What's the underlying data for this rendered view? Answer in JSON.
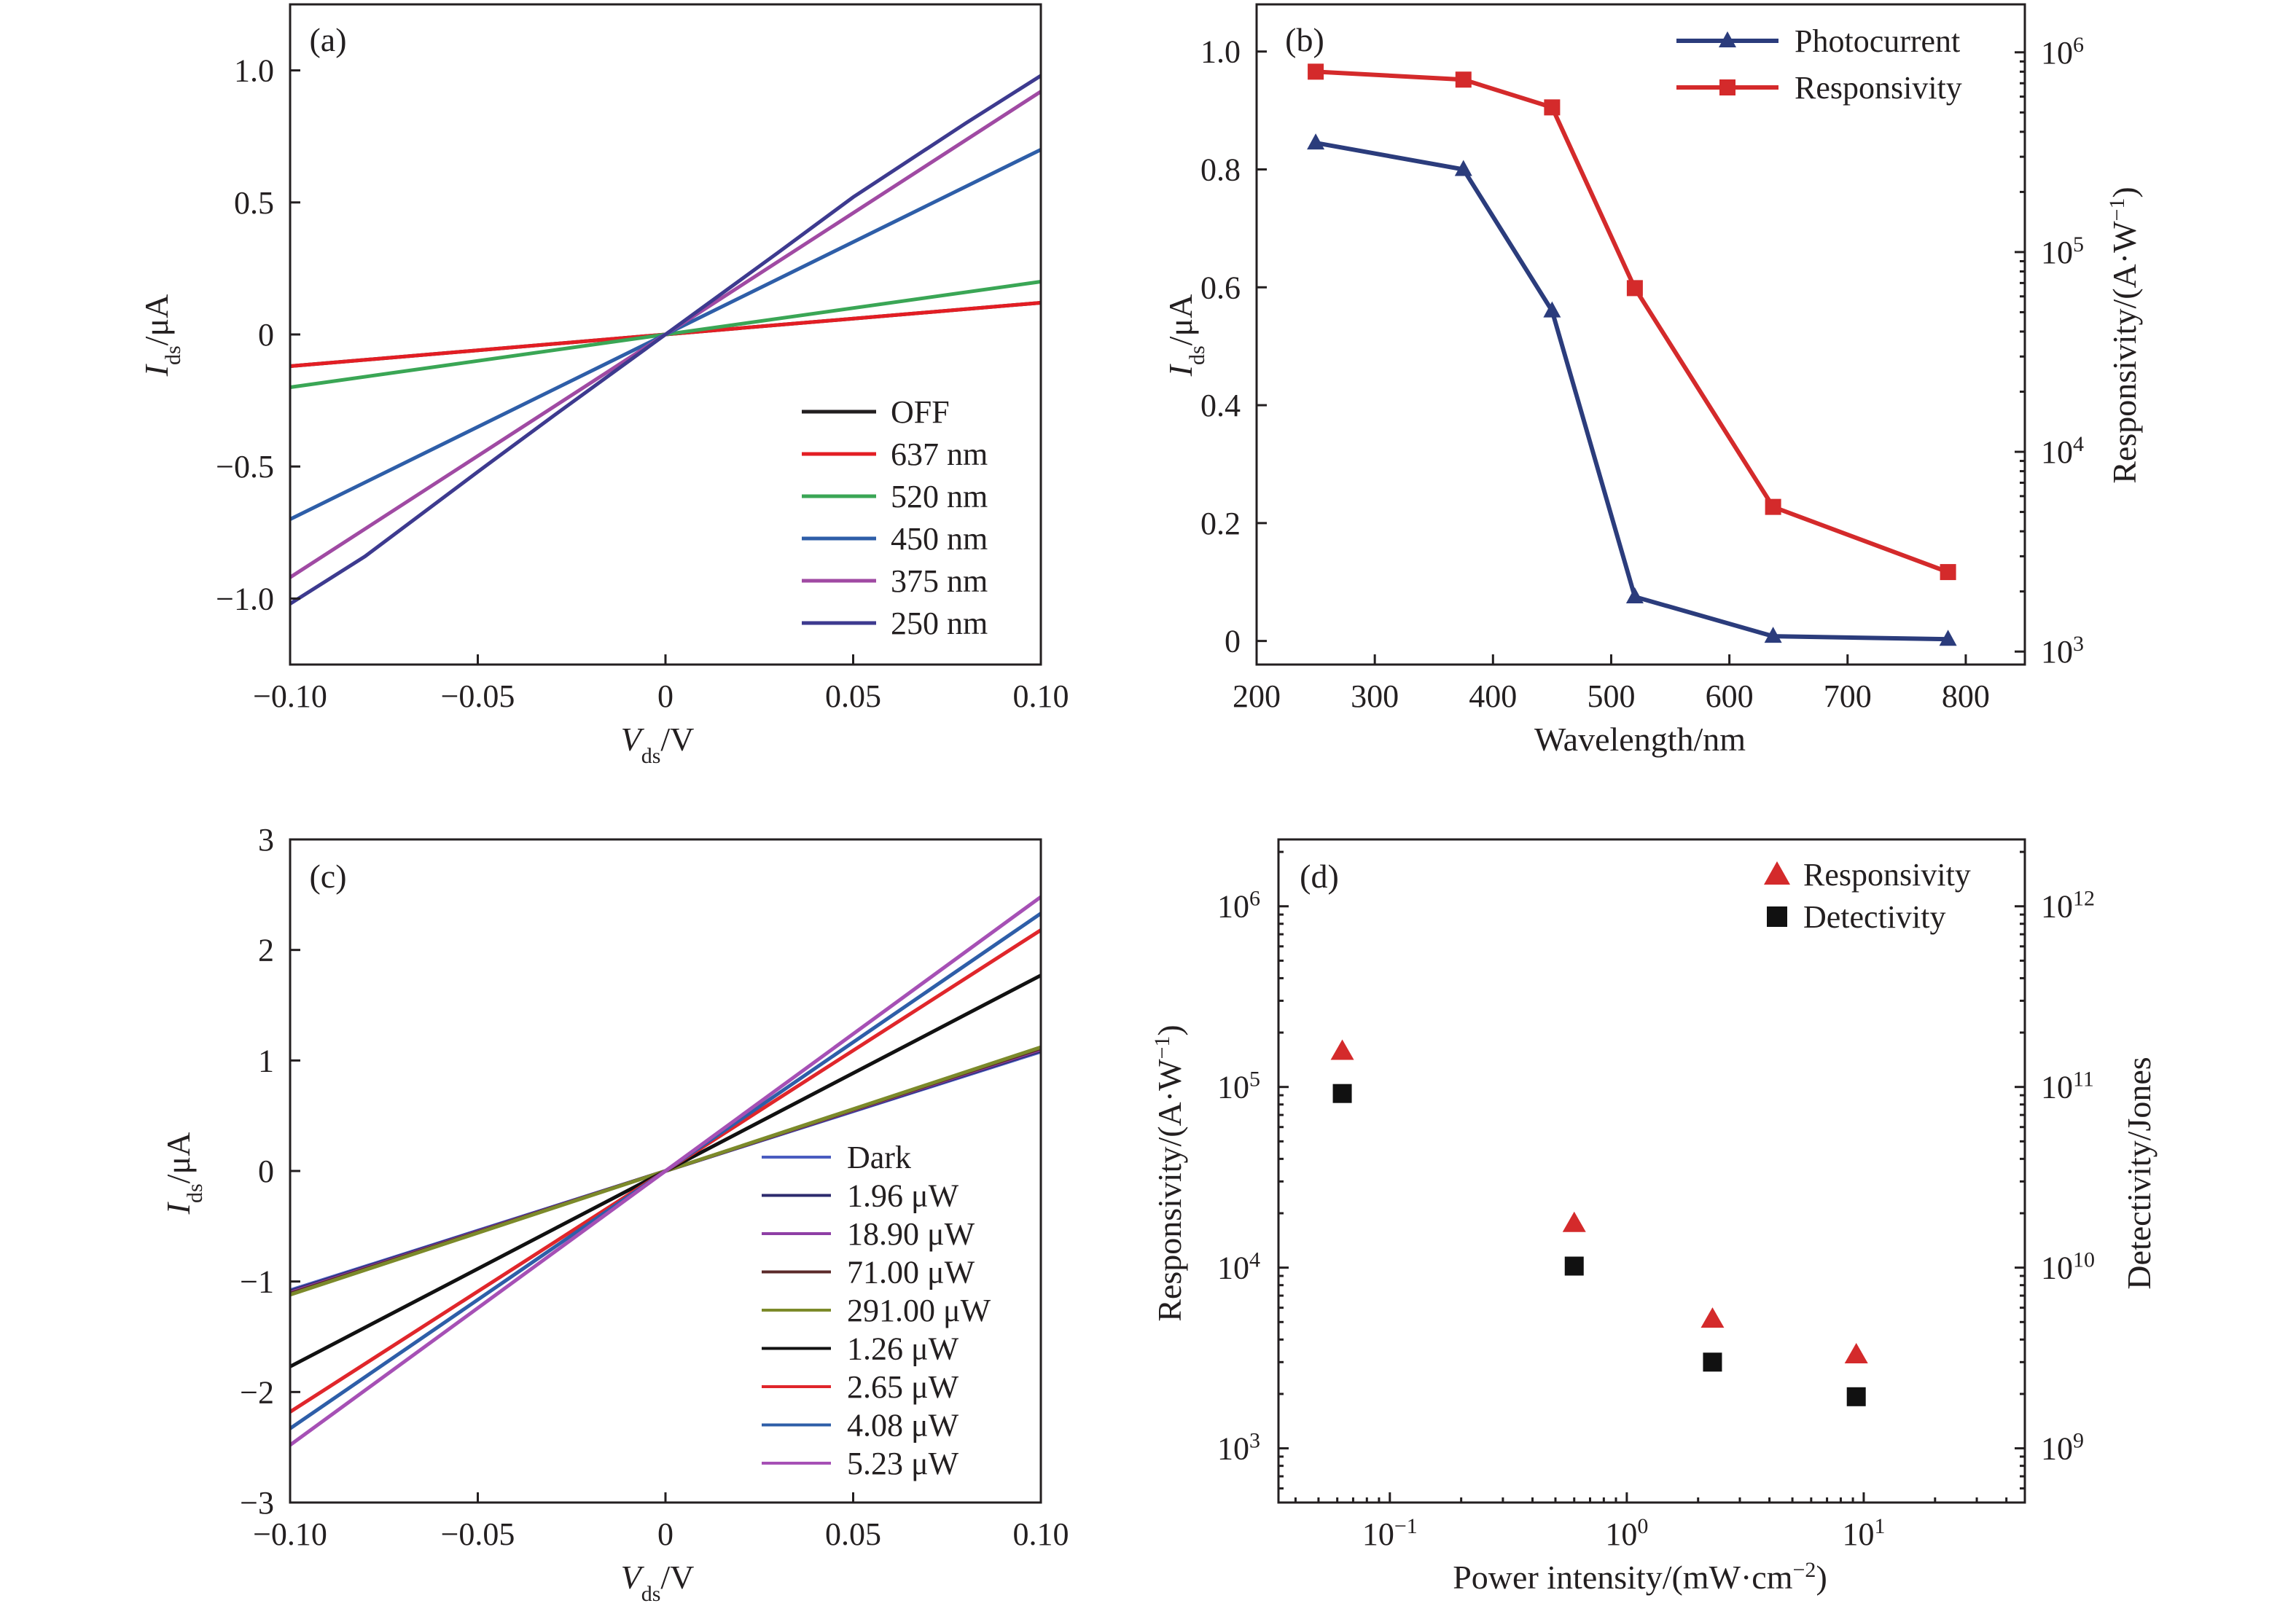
{
  "chart_data": [
    {
      "panel": "(a)",
      "type": "line",
      "xlabel": "V",
      "xlabel_sub": "ds",
      "xlabel_unit": "/V",
      "ylabel": "I",
      "ylabel_sub": "ds",
      "ylabel_unit": "/μA",
      "xlim": [
        -0.1,
        0.1
      ],
      "ylim": [
        -1.25,
        1.25
      ],
      "x_ticks": [
        -0.1,
        -0.05,
        0,
        0.05,
        0.1
      ],
      "x_tick_labels": [
        "−0.10",
        "−0.05",
        "0",
        "0.05",
        "0.10"
      ],
      "y_ticks": [
        -1.0,
        -0.5,
        0,
        0.5,
        1.0
      ],
      "y_tick_labels": [
        "−1.0",
        "−0.5",
        "0",
        "0.5",
        "1.0"
      ],
      "legend_position": "bottom-right",
      "series": [
        {
          "name": "OFF",
          "color": "#231f20",
          "x": [
            -0.1,
            0.1
          ],
          "y": [
            -0.12,
            0.12
          ]
        },
        {
          "name": "637 nm",
          "color": "#e31e24",
          "x": [
            -0.1,
            0.1
          ],
          "y": [
            -0.12,
            0.12
          ]
        },
        {
          "name": "520 nm",
          "color": "#3aa655",
          "x": [
            -0.1,
            0.1
          ],
          "y": [
            -0.2,
            0.2
          ]
        },
        {
          "name": "450 nm",
          "color": "#2e5ea8",
          "x": [
            -0.1,
            0.1
          ],
          "y": [
            -0.7,
            0.7
          ]
        },
        {
          "name": "375 nm",
          "color": "#a04aa3",
          "x": [
            -0.1,
            0.1
          ],
          "y": [
            -0.92,
            0.92
          ]
        },
        {
          "name": "250 nm",
          "color": "#3d3a8f",
          "x": [
            -0.1,
            -0.08,
            -0.05,
            -0.03,
            0,
            0.03,
            0.05,
            0.08,
            0.1
          ],
          "y": [
            -1.02,
            -0.84,
            -0.52,
            -0.31,
            0,
            0.31,
            0.52,
            0.8,
            0.98
          ]
        }
      ]
    },
    {
      "panel": "(b)",
      "type": "line",
      "xlabel": "Wavelength/nm",
      "ylabel": "I",
      "ylabel_sub": "ds",
      "ylabel_unit": "/μA",
      "y2label": "Responsivity/(A·W",
      "y2label_sup": "−1",
      "y2label_end": ")",
      "xlim": [
        200,
        850
      ],
      "ylim": [
        -0.04,
        1.08
      ],
      "y2lim_log": [
        2.935,
        6.24
      ],
      "y2_scale": "log",
      "x_ticks": [
        200,
        300,
        400,
        500,
        600,
        700,
        800
      ],
      "x_tick_labels": [
        "200",
        "300",
        "400",
        "500",
        "600",
        "700",
        "800"
      ],
      "y_ticks": [
        0,
        0.2,
        0.4,
        0.6,
        0.8,
        1.0
      ],
      "y_tick_labels": [
        "0",
        "0.2",
        "0.4",
        "0.6",
        "0.8",
        "1.0"
      ],
      "y2_ticks": [
        3,
        4,
        5,
        6
      ],
      "y2_tick_base": "10",
      "legend_position": "top-right",
      "series": [
        {
          "name": "Photocurrent",
          "color": "#2b3c7c",
          "marker": "triangle",
          "axis": "left",
          "x": [
            250,
            375,
            450,
            520,
            637,
            785
          ],
          "y": [
            0.845,
            0.8,
            0.56,
            0.075,
            0.008,
            0.003
          ]
        },
        {
          "name": "Responsivity",
          "color": "#d42a2b",
          "marker": "square",
          "axis": "right",
          "x": [
            250,
            375,
            450,
            520,
            637,
            785
          ],
          "y": [
            800000,
            730000,
            530000,
            66000,
            5300,
            2500
          ]
        }
      ]
    },
    {
      "panel": "(c)",
      "type": "line",
      "xlabel": "V",
      "xlabel_sub": "ds",
      "xlabel_unit": "/V",
      "ylabel": "I",
      "ylabel_sub": "ds",
      "ylabel_unit": "/μA",
      "xlim": [
        -0.1,
        0.1
      ],
      "ylim": [
        -3,
        3
      ],
      "x_ticks": [
        -0.1,
        -0.05,
        0,
        0.05,
        0.1
      ],
      "x_tick_labels": [
        "−0.10",
        "−0.05",
        "0",
        "0.05",
        "0.10"
      ],
      "y_ticks": [
        -3,
        -2,
        -1,
        0,
        1,
        2,
        3
      ],
      "y_tick_labels": [
        "−3",
        "−2",
        "−1",
        "0",
        "1",
        "2",
        "3"
      ],
      "legend_position": "bottom-right",
      "series": [
        {
          "name": "Dark",
          "color": "#4a5cc0",
          "x": [
            -0.1,
            0.1
          ],
          "y": [
            -1.08,
            1.08
          ]
        },
        {
          "name": "1.96 μW",
          "color": "#2d2b6e",
          "x": [
            -0.1,
            0.1
          ],
          "y": [
            -1.09,
            1.09
          ]
        },
        {
          "name": "18.90 μW",
          "color": "#8e3fa5",
          "x": [
            -0.1,
            0.1
          ],
          "y": [
            -1.1,
            1.1
          ]
        },
        {
          "name": "71.00 μW",
          "color": "#5b2a2a",
          "x": [
            -0.1,
            0.1
          ],
          "y": [
            -1.11,
            1.11
          ]
        },
        {
          "name": "291.00 μW",
          "color": "#7c8a2a",
          "x": [
            -0.1,
            0.1
          ],
          "y": [
            -1.12,
            1.12
          ]
        },
        {
          "name": "1.26 μW",
          "color": "#111111",
          "x": [
            -0.1,
            0.1
          ],
          "y": [
            -1.77,
            1.77
          ]
        },
        {
          "name": "2.65 μW",
          "color": "#e0262b",
          "x": [
            -0.1,
            0.1
          ],
          "y": [
            -2.18,
            2.18
          ]
        },
        {
          "name": "4.08 μW",
          "color": "#2e5ea8",
          "x": [
            -0.1,
            0.1
          ],
          "y": [
            -2.33,
            2.33
          ]
        },
        {
          "name": "5.23 μW",
          "color": "#a650b5",
          "x": [
            -0.1,
            0.1
          ],
          "y": [
            -2.48,
            2.48
          ]
        }
      ]
    },
    {
      "panel": "(d)",
      "type": "scatter",
      "xlabel": "Power intensity/(mW·cm",
      "xlabel_sup": "−2",
      "xlabel_end": ")",
      "ylabel": "Responsivity/(A·W",
      "ylabel_sup": "−1",
      "ylabel_end": ")",
      "y2label": "Detectivity/Jones",
      "x_scale": "log",
      "y_scale": "log",
      "y2_scale": "log",
      "xlim_log": [
        -1.47,
        1.68
      ],
      "ylim_log": [
        2.7,
        6.37
      ],
      "y2lim_log": [
        8.7,
        12.37
      ],
      "x_ticks": [
        -1,
        0,
        1
      ],
      "x_tick_base": "10",
      "y_ticks": [
        3,
        4,
        5,
        6
      ],
      "y_tick_base": "10",
      "y2_ticks": [
        9,
        10,
        11,
        12
      ],
      "y2_tick_base": "10",
      "legend_position": "top-right",
      "series": [
        {
          "name": "Responsivity",
          "color": "#d42a2b",
          "marker": "triangle",
          "axis": "left",
          "x": [
            0.063,
            0.6,
            2.3,
            9.3
          ],
          "y": [
            158000,
            17600,
            5200,
            3300
          ]
        },
        {
          "name": "Detectivity",
          "color": "#111111",
          "marker": "square",
          "axis": "right",
          "x": [
            0.063,
            0.6,
            2.3,
            9.3
          ],
          "y": [
            92000000000,
            10200000000,
            3000000000,
            1930000000
          ]
        }
      ]
    }
  ]
}
